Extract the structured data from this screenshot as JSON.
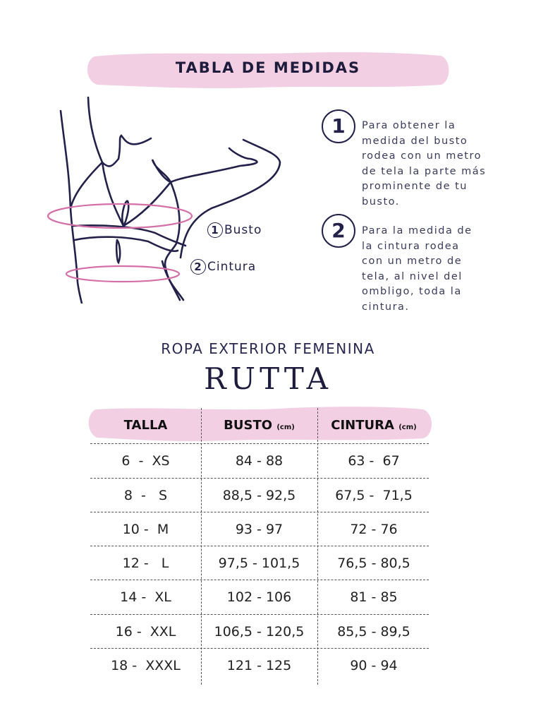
{
  "header": {
    "title": "TABLA DE MEDIDAS"
  },
  "illustration": {
    "labels": [
      {
        "num": "1",
        "text": "Busto"
      },
      {
        "num": "2",
        "text": "Cintura"
      }
    ]
  },
  "instructions": [
    {
      "num": "1",
      "lines": [
        "Para obtener la",
        "medida del busto",
        "rodea con un metro",
        "de tela la parte más",
        "prominente de tu",
        "busto."
      ]
    },
    {
      "num": "2",
      "lines": [
        "Para la medida de",
        "la cintura rodea",
        "con un metro de",
        "tela, al nivel del",
        "ombligo, toda la",
        "cintura."
      ]
    }
  ],
  "subtitle": "ROPA EXTERIOR FEMENINA",
  "brand": "RUTTA",
  "table": {
    "headers": [
      {
        "label": "TALLA",
        "unit": ""
      },
      {
        "label": "BUSTO",
        "unit": "(cm)"
      },
      {
        "label": "CINTURA",
        "unit": "(cm)"
      }
    ],
    "rows": [
      [
        "6  -  XS",
        "84 - 88",
        "63 -  67"
      ],
      [
        "8  -   S",
        "88,5 - 92,5",
        "67,5 -  71,5"
      ],
      [
        "10 -  M",
        "93 - 97",
        "72 - 76"
      ],
      [
        "12 -   L",
        "97,5 - 101,5",
        "76,5 - 80,5"
      ],
      [
        "14 -  XL",
        "102 - 106",
        "81 - 85"
      ],
      [
        "16 -  XXL",
        "106,5 - 120,5",
        "85,5 - 89,5"
      ],
      [
        "18 -  XXXL",
        "121 - 125",
        "90 - 94"
      ]
    ]
  },
  "colors": {
    "pink": "#f2cfe2",
    "navy": "#23214a",
    "ring": "#d46fa8"
  }
}
